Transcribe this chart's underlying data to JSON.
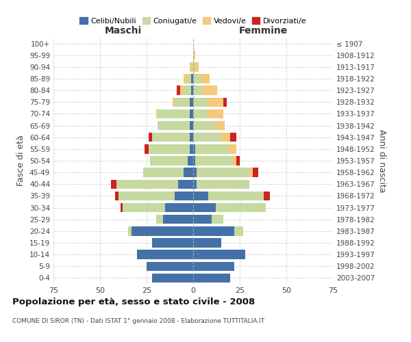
{
  "age_groups": [
    "0-4",
    "5-9",
    "10-14",
    "15-19",
    "20-24",
    "25-29",
    "30-34",
    "35-39",
    "40-44",
    "45-49",
    "50-54",
    "55-59",
    "60-64",
    "65-69",
    "70-74",
    "75-79",
    "80-84",
    "85-89",
    "90-94",
    "95-99",
    "100+"
  ],
  "birth_years": [
    "2003-2007",
    "1998-2002",
    "1993-1997",
    "1988-1992",
    "1983-1987",
    "1978-1982",
    "1973-1977",
    "1968-1972",
    "1963-1967",
    "1958-1962",
    "1953-1957",
    "1948-1952",
    "1943-1947",
    "1938-1942",
    "1933-1937",
    "1928-1932",
    "1923-1927",
    "1918-1922",
    "1913-1917",
    "1908-1912",
    "≤ 1907"
  ],
  "maschi": {
    "celibi": [
      22,
      25,
      30,
      22,
      33,
      16,
      15,
      10,
      8,
      5,
      3,
      2,
      2,
      2,
      2,
      2,
      1,
      1,
      0,
      0,
      0
    ],
    "coniugati": [
      0,
      0,
      0,
      0,
      2,
      4,
      23,
      30,
      33,
      22,
      20,
      22,
      20,
      17,
      17,
      8,
      4,
      2,
      1,
      0,
      0
    ],
    "vedovi": [
      0,
      0,
      0,
      0,
      0,
      0,
      0,
      0,
      0,
      0,
      0,
      0,
      0,
      0,
      1,
      1,
      2,
      2,
      1,
      0,
      0
    ],
    "divorziati": [
      0,
      0,
      0,
      0,
      0,
      0,
      1,
      2,
      3,
      0,
      0,
      2,
      2,
      0,
      0,
      0,
      2,
      0,
      0,
      0,
      0
    ]
  },
  "femmine": {
    "nubili": [
      20,
      22,
      28,
      15,
      22,
      10,
      12,
      8,
      2,
      2,
      1,
      1,
      0,
      0,
      0,
      0,
      0,
      0,
      0,
      0,
      0
    ],
    "coniugate": [
      0,
      0,
      0,
      0,
      5,
      6,
      27,
      30,
      28,
      28,
      20,
      18,
      15,
      12,
      8,
      8,
      5,
      4,
      0,
      0,
      0
    ],
    "vedove": [
      0,
      0,
      0,
      0,
      0,
      0,
      0,
      0,
      0,
      2,
      2,
      4,
      5,
      5,
      8,
      8,
      8,
      5,
      3,
      1,
      0
    ],
    "divorziate": [
      0,
      0,
      0,
      0,
      0,
      0,
      0,
      3,
      0,
      3,
      2,
      0,
      3,
      0,
      0,
      2,
      0,
      0,
      0,
      0,
      0
    ]
  },
  "colors": {
    "celibi": "#4472a8",
    "coniugati": "#c5d9a0",
    "vedovi": "#f5c87a",
    "divorziati": "#cc2222"
  },
  "legend_labels": [
    "Celibi/Nubili",
    "Coniugati/e",
    "Vedovi/e",
    "Divorziati/e"
  ],
  "xlim": 75,
  "title": "Popolazione per età, sesso e stato civile - 2008",
  "subtitle": "COMUNE DI SIROR (TN) - Dati ISTAT 1° gennaio 2008 - Elaborazione TUTTITALIA.IT",
  "ylabel_left": "Fasce di età",
  "ylabel_right": "Anni di nascita",
  "xlabel_left": "Maschi",
  "xlabel_right": "Femmine"
}
